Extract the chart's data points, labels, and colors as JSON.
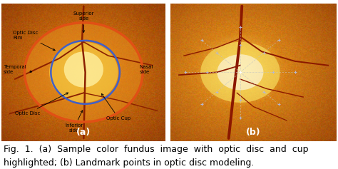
{
  "figure_width": 4.74,
  "figure_height": 2.37,
  "dpi": 100,
  "bg_color": "#ffffff",
  "caption_line1": "Fig.  1.  (a)  Sample  color  fundus  image  with  optic  disc  and  cup",
  "caption_line2": "highlighted; (b) Landmark points in optic disc modeling.",
  "label_a": "(a)",
  "label_b": "(b)",
  "caption_fontsize": 9.0,
  "label_fontsize": 9
}
